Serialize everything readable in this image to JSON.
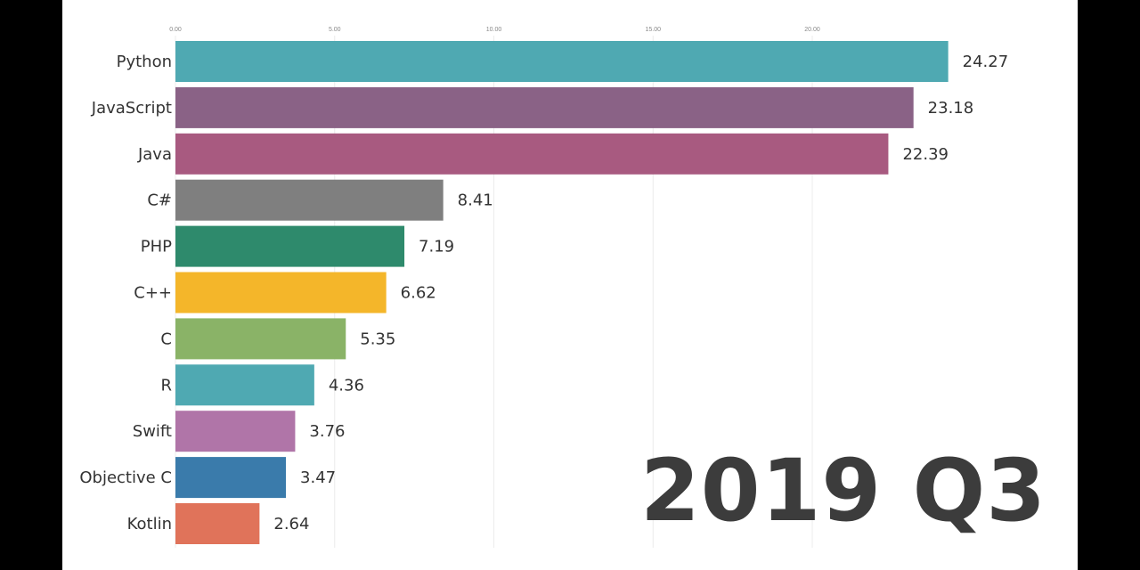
{
  "chart_data": {
    "type": "bar",
    "orientation": "horizontal",
    "period": "2019 Q3",
    "categories": [
      "Python",
      "JavaScript",
      "Java",
      "C#",
      "PHP",
      "C++",
      "C",
      "R",
      "Swift",
      "Objective C",
      "Kotlin"
    ],
    "values": [
      24.27,
      23.18,
      22.39,
      8.41,
      7.19,
      6.62,
      5.35,
      4.36,
      3.76,
      3.47,
      2.64
    ],
    "colors": [
      "#4fa9b2",
      "#8a6286",
      "#a85a80",
      "#7f7f7f",
      "#2e8a6c",
      "#f4b62a",
      "#8ab367",
      "#4fa9b2",
      "#b075a8",
      "#3a7bab",
      "#e0735a"
    ],
    "xticks": [
      "0.00",
      "5.00",
      "10.00",
      "15.00",
      "20.00"
    ],
    "xlim": [
      0,
      25
    ],
    "grid": true,
    "title": "",
    "xlabel": "",
    "ylabel": ""
  }
}
